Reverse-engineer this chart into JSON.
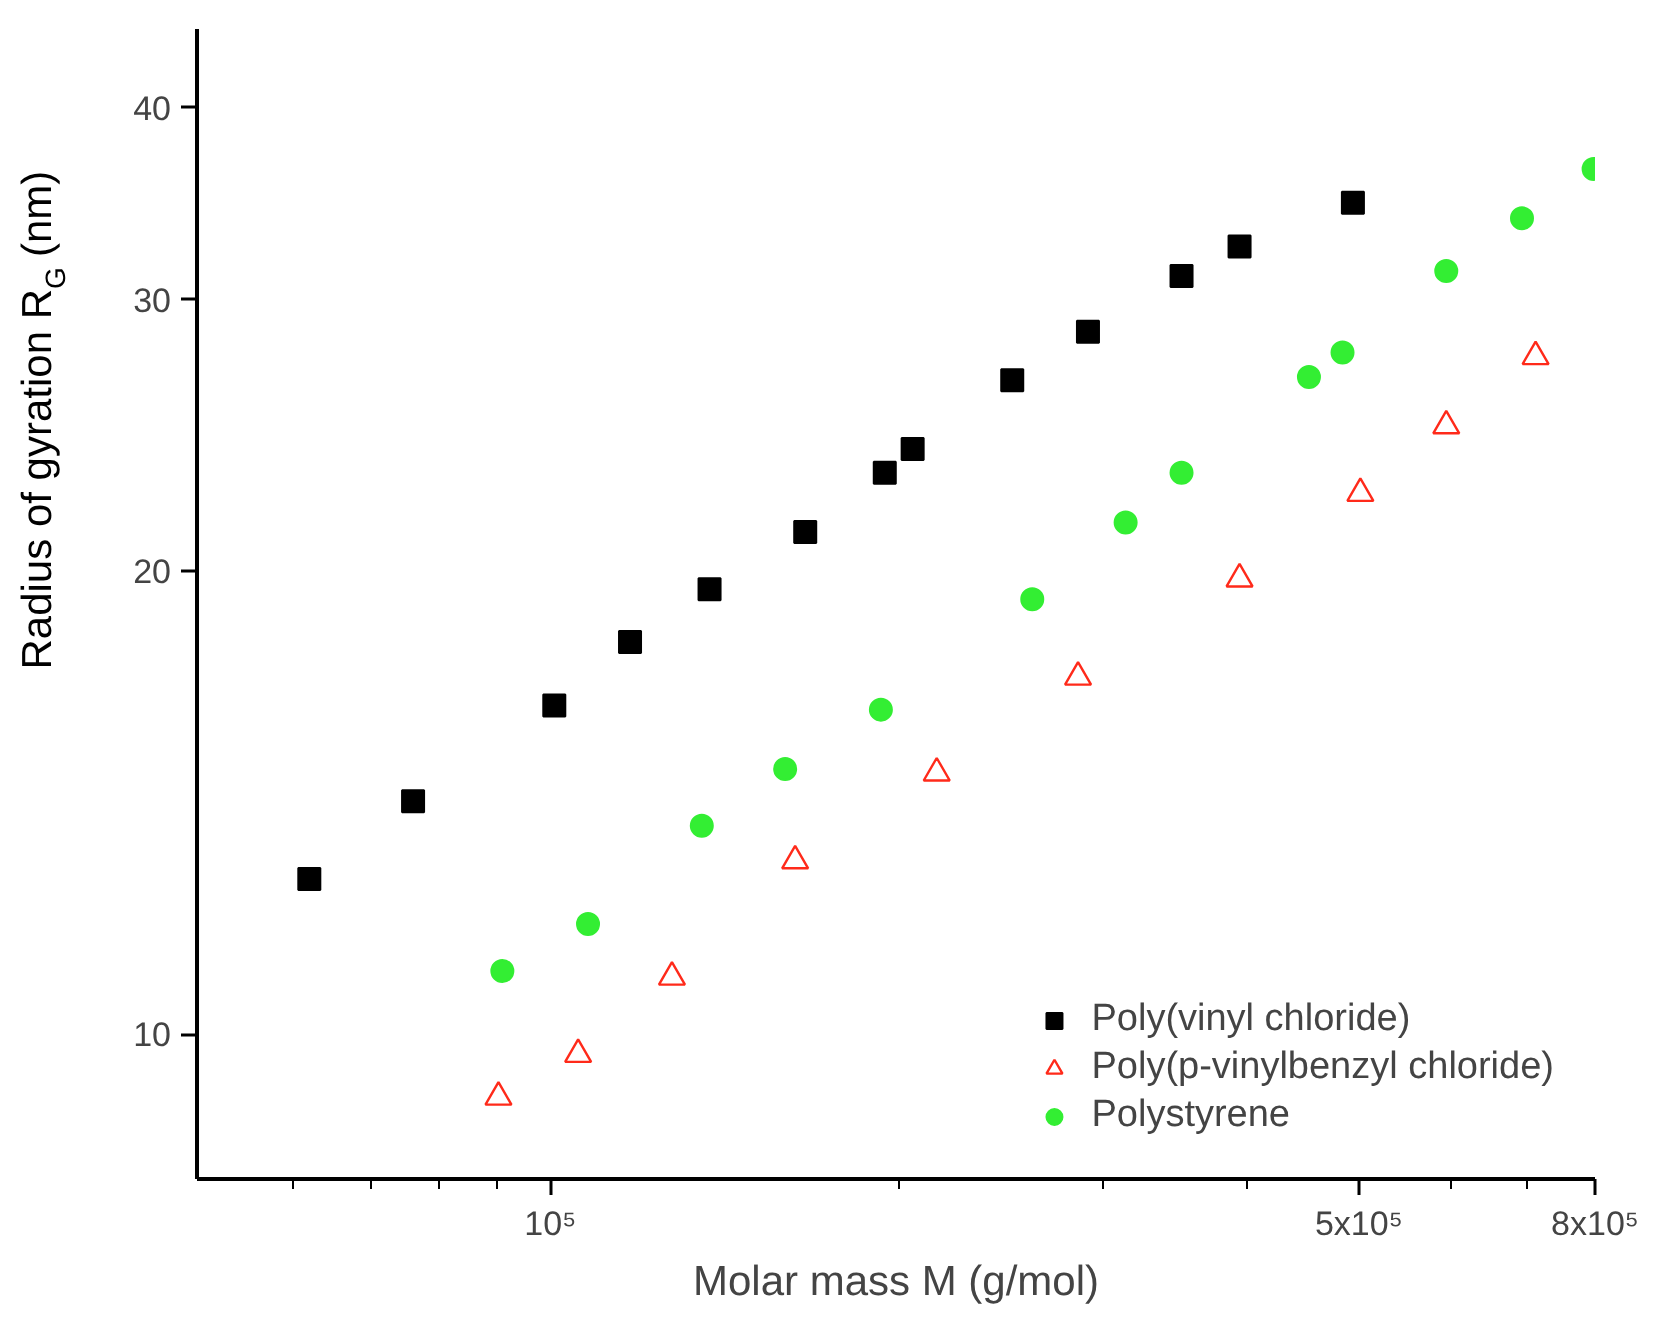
{
  "chart_data": {
    "type": "scatter",
    "xlabel": "Molar mass M (g/mol)",
    "ylabel": "Radius of gyration R$_{G}$ (nm)",
    "log": "xy",
    "xlim": [
      49500,
      800000
    ],
    "ylim": [
      8.05,
      45
    ],
    "xticks": [
      {
        "value": 60000,
        "label": null
      },
      {
        "value": 70000,
        "label": null
      },
      {
        "value": 80000,
        "label": null
      },
      {
        "value": 90000,
        "label": null
      },
      {
        "value": 100000,
        "label": "10⁵"
      },
      {
        "value": 200000,
        "label": null
      },
      {
        "value": 300000,
        "label": null
      },
      {
        "value": 400000,
        "label": null
      },
      {
        "value": 500000,
        "label": "5x10⁵"
      },
      {
        "value": 600000,
        "label": null
      },
      {
        "value": 700000,
        "label": null
      },
      {
        "value": 800000,
        "label": "8x10⁵"
      }
    ],
    "yticks": [
      10,
      20,
      30,
      40
    ],
    "grid": false,
    "legend": "bottom right",
    "series": [
      {
        "name": "Poly(vinyl chloride)",
        "color": "#000000",
        "marker": "square",
        "x": [
          61900,
          76100,
          100800,
          117200,
          137300,
          166100,
          194600,
          205700,
          250800,
          291600,
          351300,
          394300,
          494100
        ],
        "values": [
          12.61,
          14.17,
          16.35,
          17.98,
          19.46,
          21.2,
          23.16,
          24.0,
          26.6,
          28.6,
          31.1,
          32.5,
          34.7
        ]
      },
      {
        "name": "Poly(p-vinylbenzyl chloride)",
        "color": "#ff2a1a",
        "marker": "triangle",
        "x": [
          90200,
          105700,
          127400,
          162800,
          215800,
          285900,
          394300,
          501500,
          595000,
          710800
        ],
        "values": [
          9.1,
          9.7,
          10.89,
          12.96,
          14.78,
          17.06,
          19.76,
          22.46,
          24.85,
          27.56
        ]
      },
      {
        "name": "Polystyrene",
        "color": "#33ee33",
        "marker": "circle",
        "x": [
          90900,
          107800,
          135200,
          159600,
          193100,
          261000,
          314300,
          351300,
          452700,
          484000,
          595000,
          691800,
          797800
        ],
        "values": [
          10.99,
          11.79,
          13.66,
          14.87,
          16.25,
          19.17,
          21.5,
          23.16,
          26.73,
          27.73,
          31.33,
          33.9,
          36.5
        ]
      }
    ]
  }
}
